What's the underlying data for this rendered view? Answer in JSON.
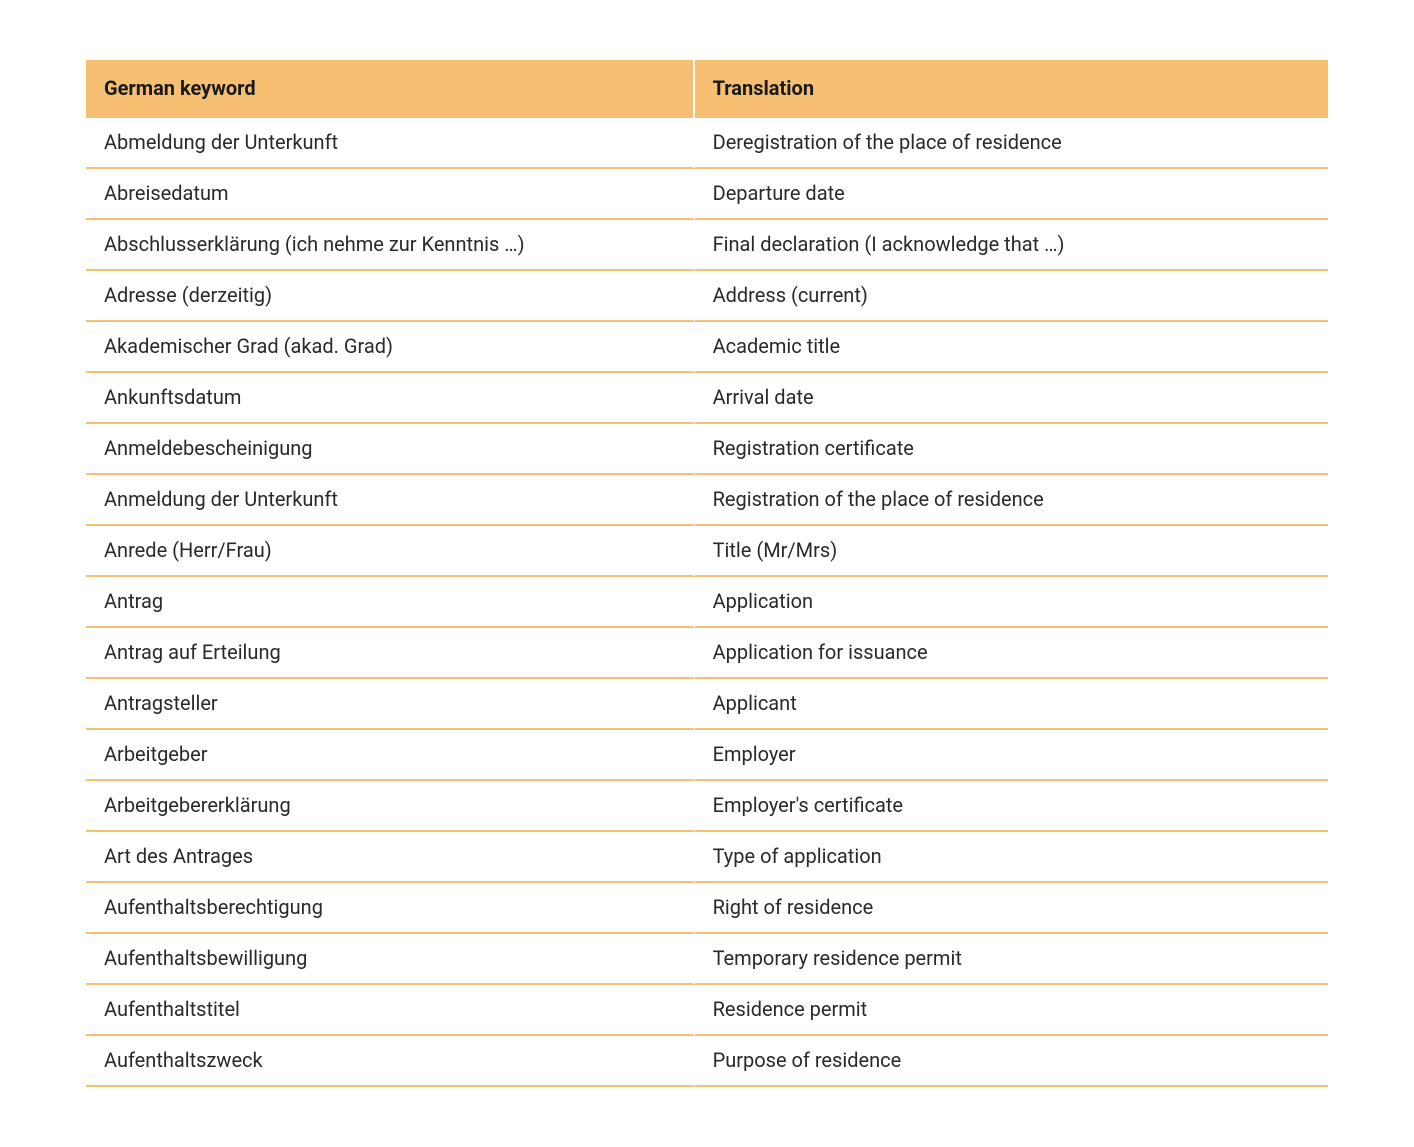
{
  "table": {
    "type": "table",
    "header_bg": "#f7bf72",
    "header_text_color": "#1a1a1a",
    "row_border_color": "#f7bf72",
    "cell_gap_color": "#ffffff",
    "background_color": "#ffffff",
    "cell_text_color": "#2a2a2a",
    "header_fontsize": 20,
    "cell_fontsize": 20,
    "column_widths_pct": [
      49,
      51
    ],
    "columns": [
      "German keyword",
      "Translation"
    ],
    "rows": [
      [
        "Abmeldung der Unterkunft",
        "Deregistration of the place of residence"
      ],
      [
        "Abreisedatum",
        "Departure date"
      ],
      [
        "Abschlusserklärung (ich nehme zur Kenntnis …)",
        "Final declaration (I acknowledge that …)"
      ],
      [
        "Adresse (derzeitig)",
        "Address (current)"
      ],
      [
        "Akademischer Grad (akad. Grad)",
        "Academic title"
      ],
      [
        "Ankunftsdatum",
        "Arrival date"
      ],
      [
        "Anmeldebescheinigung",
        "Registration certificate"
      ],
      [
        "Anmeldung der Unterkunft",
        "Registration of the place of residence"
      ],
      [
        "Anrede (Herr/Frau)",
        "Title (Mr/Mrs)"
      ],
      [
        "Antrag",
        "Application"
      ],
      [
        "Antrag auf Erteilung",
        "Application for issuance"
      ],
      [
        "Antragsteller",
        "Applicant"
      ],
      [
        "Arbeitgeber",
        "Employer"
      ],
      [
        "Arbeitgebererklärung",
        "Employer's certificate"
      ],
      [
        "Art des Antrages",
        "Type of application"
      ],
      [
        "Aufenthaltsberechtigung",
        "Right of residence"
      ],
      [
        "Aufenthaltsbewilligung",
        "Temporary residence permit"
      ],
      [
        "Aufenthaltstitel",
        "Residence permit"
      ],
      [
        "Aufenthaltszweck",
        "Purpose of residence"
      ]
    ]
  }
}
